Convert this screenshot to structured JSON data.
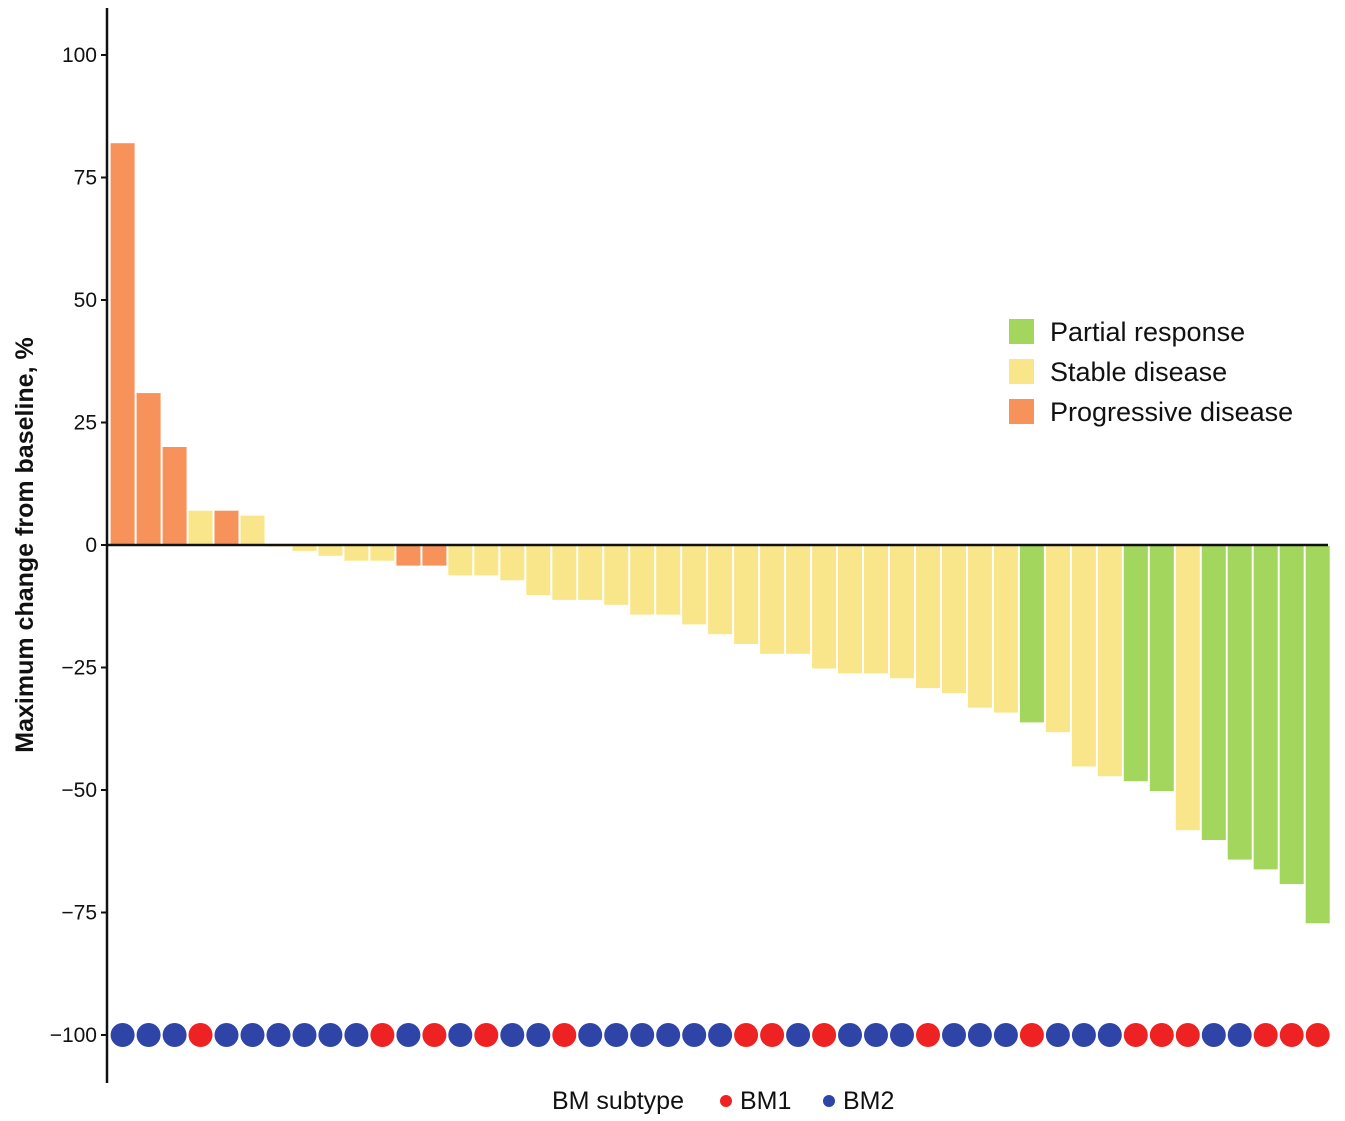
{
  "chart_data": {
    "type": "bar",
    "ylabel": "Maximum change from baseline, %",
    "ylim": [
      -110,
      110
    ],
    "yticks": [
      100,
      75,
      50,
      25,
      0,
      -25,
      -50,
      -75,
      -100
    ],
    "ytick_labels": [
      "100",
      "75",
      "50",
      "25",
      "0",
      "−25",
      "−50",
      "−75",
      "−100"
    ],
    "colors": {
      "Partial response": "#a2d65c",
      "Stable disease": "#fae68a",
      "Progressive disease": "#f6925a"
    },
    "bars": [
      {
        "value": 82,
        "response": "Progressive disease",
        "subtype": "BM2"
      },
      {
        "value": 31,
        "response": "Progressive disease",
        "subtype": "BM2"
      },
      {
        "value": 20,
        "response": "Progressive disease",
        "subtype": "BM2"
      },
      {
        "value": 7,
        "response": "Stable disease",
        "subtype": "BM1"
      },
      {
        "value": 7,
        "response": "Progressive disease",
        "subtype": "BM2"
      },
      {
        "value": 6,
        "response": "Stable disease",
        "subtype": "BM2"
      },
      {
        "value": 0,
        "response": "Stable disease",
        "subtype": "BM2"
      },
      {
        "value": -1,
        "response": "Stable disease",
        "subtype": "BM2"
      },
      {
        "value": -2,
        "response": "Stable disease",
        "subtype": "BM2"
      },
      {
        "value": -3,
        "response": "Stable disease",
        "subtype": "BM2"
      },
      {
        "value": -3,
        "response": "Stable disease",
        "subtype": "BM1"
      },
      {
        "value": -4,
        "response": "Progressive disease",
        "subtype": "BM2"
      },
      {
        "value": -4,
        "response": "Progressive disease",
        "subtype": "BM1"
      },
      {
        "value": -6,
        "response": "Stable disease",
        "subtype": "BM2"
      },
      {
        "value": -6,
        "response": "Stable disease",
        "subtype": "BM1"
      },
      {
        "value": -7,
        "response": "Stable disease",
        "subtype": "BM2"
      },
      {
        "value": -10,
        "response": "Stable disease",
        "subtype": "BM2"
      },
      {
        "value": -11,
        "response": "Stable disease",
        "subtype": "BM1"
      },
      {
        "value": -11,
        "response": "Stable disease",
        "subtype": "BM2"
      },
      {
        "value": -12,
        "response": "Stable disease",
        "subtype": "BM2"
      },
      {
        "value": -14,
        "response": "Stable disease",
        "subtype": "BM2"
      },
      {
        "value": -14,
        "response": "Stable disease",
        "subtype": "BM2"
      },
      {
        "value": -16,
        "response": "Stable disease",
        "subtype": "BM2"
      },
      {
        "value": -18,
        "response": "Stable disease",
        "subtype": "BM2"
      },
      {
        "value": -20,
        "response": "Stable disease",
        "subtype": "BM1"
      },
      {
        "value": -22,
        "response": "Stable disease",
        "subtype": "BM1"
      },
      {
        "value": -22,
        "response": "Stable disease",
        "subtype": "BM2"
      },
      {
        "value": -25,
        "response": "Stable disease",
        "subtype": "BM1"
      },
      {
        "value": -26,
        "response": "Stable disease",
        "subtype": "BM2"
      },
      {
        "value": -26,
        "response": "Stable disease",
        "subtype": "BM2"
      },
      {
        "value": -27,
        "response": "Stable disease",
        "subtype": "BM2"
      },
      {
        "value": -29,
        "response": "Stable disease",
        "subtype": "BM1"
      },
      {
        "value": -30,
        "response": "Stable disease",
        "subtype": "BM2"
      },
      {
        "value": -33,
        "response": "Stable disease",
        "subtype": "BM2"
      },
      {
        "value": -34,
        "response": "Stable disease",
        "subtype": "BM2"
      },
      {
        "value": -36,
        "response": "Partial response",
        "subtype": "BM1"
      },
      {
        "value": -38,
        "response": "Stable disease",
        "subtype": "BM2"
      },
      {
        "value": -45,
        "response": "Stable disease",
        "subtype": "BM2"
      },
      {
        "value": -47,
        "response": "Stable disease",
        "subtype": "BM2"
      },
      {
        "value": -48,
        "response": "Partial response",
        "subtype": "BM1"
      },
      {
        "value": -50,
        "response": "Partial response",
        "subtype": "BM1"
      },
      {
        "value": -58,
        "response": "Stable disease",
        "subtype": "BM1"
      },
      {
        "value": -60,
        "response": "Partial response",
        "subtype": "BM2"
      },
      {
        "value": -64,
        "response": "Partial response",
        "subtype": "BM2"
      },
      {
        "value": -66,
        "response": "Partial response",
        "subtype": "BM1"
      },
      {
        "value": -69,
        "response": "Partial response",
        "subtype": "BM1"
      },
      {
        "value": -77,
        "response": "Partial response",
        "subtype": "BM1"
      }
    ],
    "subtype_marker_value": -100,
    "legend": {
      "position": "right",
      "items": [
        "Partial response",
        "Stable disease",
        "Progressive disease"
      ]
    },
    "subtype_legend": {
      "title": "BM subtype",
      "items": [
        {
          "label": "BM1",
          "color": "#ee2222"
        },
        {
          "label": "BM2",
          "color": "#2e44a6"
        }
      ]
    },
    "grid": false
  }
}
